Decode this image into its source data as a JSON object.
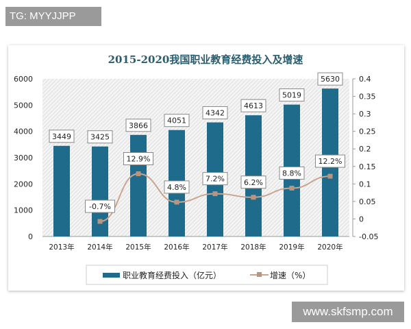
{
  "watermark_top": "TG: MYYJJPP",
  "watermark_bottom": "www.skfsmp.com",
  "chart_data": {
    "type": "bar+line",
    "title": "2015-2020我国职业教育经费投入及增速",
    "categories": [
      "2013年",
      "2014年",
      "2015年",
      "2016年",
      "2017年",
      "2018年",
      "2019年",
      "2020年"
    ],
    "series": [
      {
        "name": "职业教育经费投入（亿元）",
        "type": "bar",
        "axis": "left",
        "values": [
          3449,
          3425,
          3866,
          4051,
          4342,
          4613,
          5019,
          5630
        ],
        "labels": [
          "3449",
          "3425",
          "3866",
          "4051",
          "4342",
          "4613",
          "5019",
          "5630"
        ],
        "color": "#1f6b8c"
      },
      {
        "name": "增速（%）",
        "type": "line",
        "axis": "right",
        "values": [
          null,
          -0.007,
          0.129,
          0.048,
          0.072,
          0.062,
          0.088,
          0.122
        ],
        "labels": [
          "",
          "-0.7%",
          "12.9%",
          "4.8%",
          "7.2%",
          "6.2%",
          "8.8%",
          "12.2%"
        ],
        "color": "#c9a58f"
      }
    ],
    "y_left": {
      "range": [
        0,
        6000
      ],
      "ticks": [
        "0",
        "1000",
        "2000",
        "3000",
        "4000",
        "5000",
        "6000"
      ]
    },
    "y_right": {
      "range": [
        -0.05,
        0.4
      ],
      "ticks": [
        "-0.05",
        "0",
        "0.05",
        "0.1",
        "0.15",
        "0.2",
        "0.25",
        "0.3",
        "0.35",
        "0.4"
      ]
    },
    "grid": false,
    "legend": "bottom"
  }
}
